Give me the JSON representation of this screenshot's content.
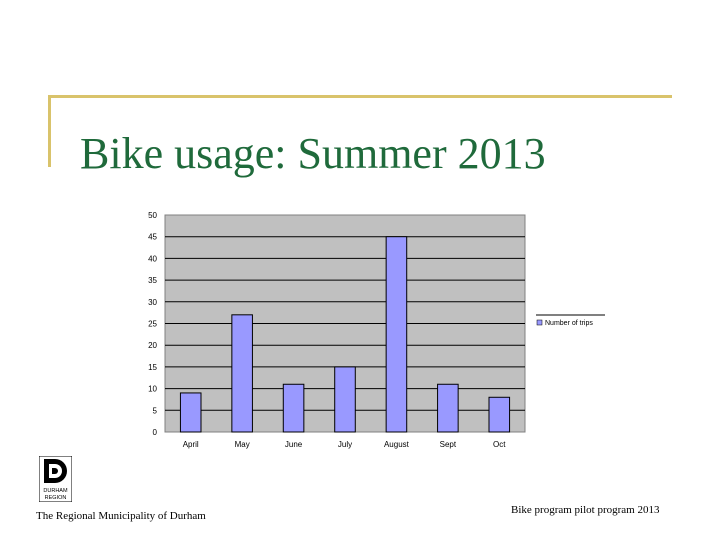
{
  "slide": {
    "title": "Bike usage: Summer 2013",
    "footer_left": "The Regional Municipality of Durham",
    "footer_right": "Bike program pilot program 2013",
    "logo_text": [
      "DURHAM",
      "REGION"
    ]
  },
  "colors": {
    "title": "#1f6a3b",
    "decoration": "#d9c36b",
    "plot_background": "#c0c0c0",
    "bar_fill": "#9999ff",
    "bar_stroke": "#000000"
  },
  "chart_data": {
    "type": "bar",
    "categories": [
      "April",
      "May",
      "June",
      "July",
      "August",
      "Sept",
      "Oct"
    ],
    "series": [
      {
        "name": "Number of trips",
        "values": [
          9,
          27,
          11,
          15,
          45,
          11,
          8
        ]
      }
    ],
    "y_ticks": [
      0,
      5,
      10,
      15,
      20,
      25,
      30,
      35,
      40,
      45,
      50
    ],
    "ylim": [
      0,
      50
    ],
    "grid": "horizontal",
    "legend_position": "right"
  }
}
